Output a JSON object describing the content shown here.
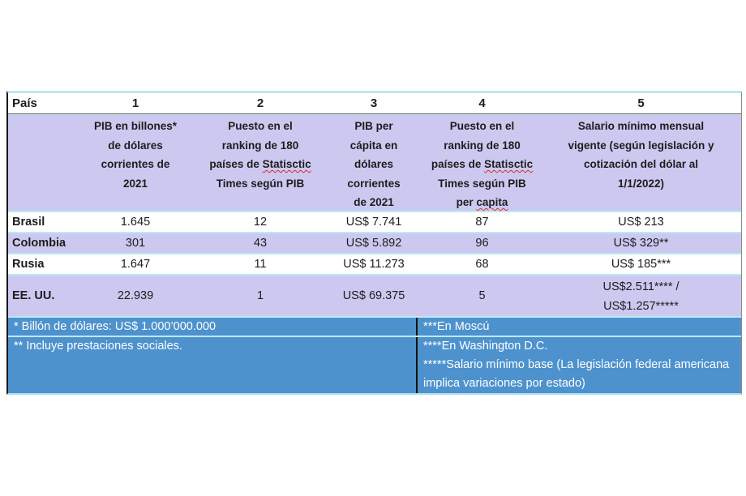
{
  "colors": {
    "page_background": "#ffffff",
    "lavender_row": "#cdc8f0",
    "footer_blue": "#4d92cd",
    "cyan_grid_line": "#bce9f3",
    "dark_text": "#1d1d1d",
    "white_text": "#ffffff",
    "spellcheck_red": "#dd2c21",
    "border_black": "#161616"
  },
  "header_row": {
    "pais": "País",
    "nums": [
      "1",
      "2",
      "3",
      "4",
      "5"
    ]
  },
  "descriptions": {
    "col1": {
      "lines": [
        "PIB en billones*",
        "de dólares",
        "corrientes de",
        "2021"
      ]
    },
    "col2": {
      "l1": "Puesto en el",
      "l2": "ranking de 180",
      "l3a": "países de ",
      "l3b": "Statisctic",
      "l4": "Times según PIB"
    },
    "col3": {
      "lines": [
        "PIB per",
        "cápita en",
        "dólares",
        "corrientes",
        "de 2021"
      ]
    },
    "col4": {
      "l1": "Puesto en el",
      "l2": "ranking de 180",
      "l3a": "países de ",
      "l3b": "Statisctic",
      "l4": "Times según PIB",
      "l5a": "per ",
      "l5b": "capita"
    },
    "col5": {
      "lines": [
        "Salario mínimo mensual",
        "vigente (según legislación y",
        "cotización del dólar al",
        "1/1/2022)"
      ]
    }
  },
  "rows": [
    {
      "country": "Brasil",
      "pib": "1.645",
      "rank_pib": "12",
      "pib_pc": "US$ 7.741",
      "rank_pc": "87",
      "salario": "US$ 213"
    },
    {
      "country": "Colombia",
      "pib": "301",
      "rank_pib": "43",
      "pib_pc": "US$ 5.892",
      "rank_pc": "96",
      "salario": "US$ 329**"
    },
    {
      "country": "Rusia",
      "pib": "1.647",
      "rank_pib": "11",
      "pib_pc": "US$ 11.273",
      "rank_pc": "68",
      "salario": "US$ 185***"
    },
    {
      "country": "EE. UU.",
      "pib": "22.939",
      "rank_pib": "1",
      "pib_pc": "US$ 69.375",
      "rank_pc": "5",
      "salario_line1": "US$2.511**** /",
      "salario_line2": "US$1.257*****"
    }
  ],
  "footnotes": {
    "left": [
      "* Billón de dólares: US$ 1.000’000.000",
      "** Incluye prestaciones sociales."
    ],
    "right": [
      "***En Moscú",
      "****En Washington D.C.",
      "*****Salario mínimo base (La legislación federal americana implica variaciones por estado)"
    ]
  },
  "chart_data": {
    "type": "table",
    "columns": [
      "País",
      "1: PIB en billones* de dólares corrientes de 2021",
      "2: Puesto en el ranking de 180 países de Statisctic Times según PIB",
      "3: PIB per cápita en dólares corrientes de 2021",
      "4: Puesto en el ranking de 180 países de Statisctic Times según PIB per capita",
      "5: Salario mínimo mensual vigente (según legislación y cotización del dólar al 1/1/2022)"
    ],
    "rows": [
      [
        "Brasil",
        "1.645",
        "12",
        "US$ 7.741",
        "87",
        "US$ 213"
      ],
      [
        "Colombia",
        "301",
        "43",
        "US$ 5.892",
        "96",
        "US$ 329**"
      ],
      [
        "Rusia",
        "1.647",
        "11",
        "US$ 11.273",
        "68",
        "US$ 185***"
      ],
      [
        "EE. UU.",
        "22.939",
        "1",
        "US$ 69.375",
        "5",
        "US$2.511**** / US$1.257*****"
      ]
    ],
    "footnotes": [
      "* Billón de dólares: US$ 1.000’000.000",
      "** Incluye prestaciones sociales.",
      "***En Moscú",
      "****En Washington D.C.",
      "*****Salario mínimo base (La legislación federal americana implica variaciones por estado)"
    ]
  }
}
